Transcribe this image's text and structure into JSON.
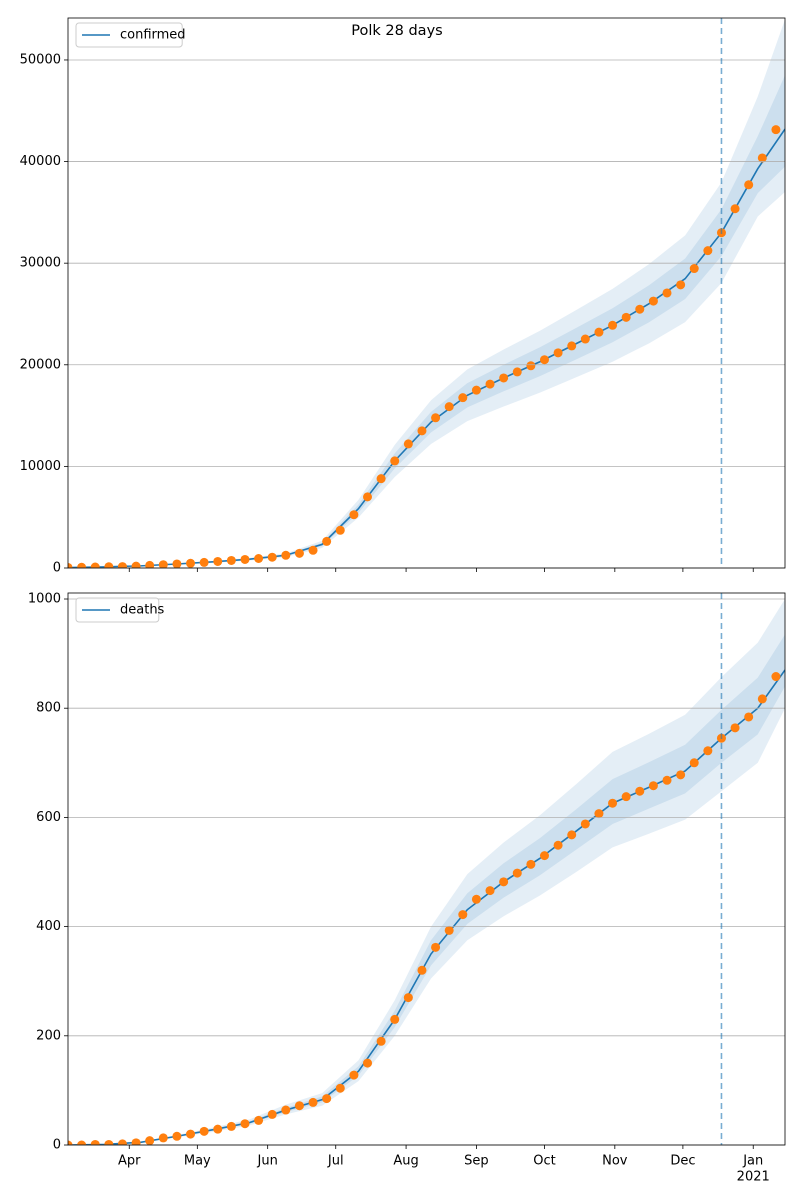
{
  "chart_data": [
    {
      "type": "line",
      "title": "Polk 28 days",
      "legend": "upper left",
      "grid": true,
      "xlim": [
        0,
        316
      ],
      "ylim": [
        0,
        54130
      ],
      "yticks": [
        0,
        10000,
        20000,
        30000,
        40000,
        50000
      ],
      "xticks": [
        {
          "value": 27,
          "label": "Apr"
        },
        {
          "value": 57,
          "label": "May"
        },
        {
          "value": 88,
          "label": "Jun"
        },
        {
          "value": 118,
          "label": "Jul"
        },
        {
          "value": 149,
          "label": "Aug"
        },
        {
          "value": 180,
          "label": "Sep"
        },
        {
          "value": 210,
          "label": "Oct"
        },
        {
          "value": 241,
          "label": "Nov"
        },
        {
          "value": 271,
          "label": "Dec"
        },
        {
          "value": 302,
          "label": "Jan"
        }
      ],
      "vline": 288,
      "vline_color": "#1f77b4",
      "band_color": "#1f77b4",
      "x": [
        0,
        16,
        32,
        48,
        64,
        80,
        96,
        112,
        128,
        144,
        160,
        176,
        192,
        208,
        224,
        240,
        256,
        272,
        288,
        304,
        316
      ],
      "series": [
        {
          "name": "confirmed",
          "color": "#1f77b4",
          "values": [
            50,
            110,
            208,
            395,
            613,
            871,
            1253,
            2327,
            5833,
            10542,
            14357,
            17000,
            18700,
            20300,
            22081,
            23887,
            26000,
            28471,
            33000,
            39300,
            43200
          ]
        }
      ],
      "bands": [
        {
          "upper": [
            58,
            127,
            239,
            454,
            705,
            1002,
            1441,
            2676,
            6708,
            12123,
            16511,
            19550,
            21505,
            23345,
            25393,
            27470,
            29900,
            32742,
            37950,
            46400,
            54000
          ],
          "lower": [
            43,
            94,
            177,
            336,
            521,
            740,
            1065,
            1978,
            4958,
            8961,
            12203,
            14450,
            15895,
            17255,
            18769,
            20304,
            22100,
            24200,
            28050,
            34600,
            37000
          ]
        },
        {
          "upper": [
            54,
            118,
            223,
            423,
            656,
            932,
            1341,
            2490,
            6241,
            11280,
            15362,
            18190,
            20009,
            21721,
            23627,
            25559,
            27820,
            30464,
            35310,
            42500,
            48500
          ],
          "lower": [
            47,
            102,
            193,
            367,
            570,
            810,
            1165,
            2164,
            5425,
            9804,
            13352,
            15810,
            17391,
            18879,
            20535,
            22215,
            24180,
            26478,
            30690,
            36900,
            39500
          ]
        }
      ],
      "observed": {
        "color": "#ff7f0e",
        "x": [
          0,
          6,
          12,
          18,
          24,
          30,
          36,
          42,
          48,
          54,
          60,
          66,
          72,
          78,
          84,
          90,
          96,
          102,
          108,
          114,
          120,
          126,
          132,
          138,
          144,
          150,
          156,
          162,
          168,
          174,
          180,
          186,
          192,
          198,
          204,
          210,
          216,
          222,
          228,
          234,
          240,
          246,
          252,
          258,
          264,
          270,
          276,
          282,
          288,
          294,
          300,
          306,
          312
        ],
        "values": [
          50,
          72,
          94,
          117,
          139,
          185,
          255,
          325,
          395,
          465,
          548,
          645,
          742,
          839,
          935,
          1063,
          1253,
          1442,
          1745,
          2618,
          3711,
          5244,
          7000,
          8792,
          10542,
          12214,
          13500,
          14786,
          15882,
          16765,
          17500,
          18100,
          18700,
          19300,
          19900,
          20500,
          21177,
          21855,
          22532,
          23210,
          23887,
          24667,
          25467,
          26267,
          27067,
          27867,
          29471,
          31235,
          33000,
          35357,
          37714,
          40357,
          43143
        ]
      }
    },
    {
      "type": "line",
      "legend": "upper left",
      "grid": true,
      "year_label": "2021",
      "xlim": [
        0,
        316
      ],
      "ylim": [
        0,
        1011
      ],
      "yticks": [
        0,
        200,
        400,
        600,
        800,
        1000
      ],
      "xticks": [
        {
          "value": 27,
          "label": "Apr"
        },
        {
          "value": 57,
          "label": "May"
        },
        {
          "value": 88,
          "label": "Jun"
        },
        {
          "value": 118,
          "label": "Jul"
        },
        {
          "value": 149,
          "label": "Aug"
        },
        {
          "value": 180,
          "label": "Sep"
        },
        {
          "value": 210,
          "label": "Oct"
        },
        {
          "value": 241,
          "label": "Nov"
        },
        {
          "value": 271,
          "label": "Dec"
        },
        {
          "value": 302,
          "label": "Jan"
        }
      ],
      "vline": 288,
      "vline_color": "#1f77b4",
      "band_color": "#1f77b4",
      "x": [
        0,
        16,
        32,
        48,
        64,
        80,
        96,
        112,
        128,
        144,
        160,
        176,
        192,
        208,
        224,
        240,
        256,
        272,
        288,
        304,
        316
      ],
      "series": [
        {
          "name": "deaths",
          "color": "#1f77b4",
          "values": [
            0,
            1,
            5,
            16,
            28,
            41,
            64,
            83,
            135,
            230,
            350,
            431,
            482,
            525,
            575,
            626,
            655,
            685,
            745,
            800,
            870
          ]
        }
      ],
      "bands": [
        {
          "upper": [
            0,
            1,
            6,
            18,
            32,
            47,
            74,
            95,
            155,
            265,
            400,
            496,
            554,
            604,
            661,
            720,
            753,
            788,
            857,
            920,
            1000
          ],
          "lower": [
            0,
            1,
            4,
            14,
            24,
            36,
            56,
            72,
            117,
            200,
            305,
            375,
            419,
            457,
            500,
            545,
            570,
            596,
            648,
            700,
            800
          ]
        },
        {
          "upper": [
            0,
            1,
            5,
            17,
            30,
            44,
            68,
            89,
            144,
            246,
            375,
            461,
            516,
            562,
            615,
            670,
            701,
            733,
            797,
            856,
            935
          ],
          "lower": [
            0,
            1,
            5,
            15,
            26,
            39,
            60,
            78,
            127,
            216,
            329,
            405,
            453,
            494,
            541,
            588,
            616,
            644,
            700,
            752,
            840
          ]
        }
      ],
      "observed": {
        "color": "#ff7f0e",
        "x": [
          0,
          6,
          12,
          18,
          24,
          30,
          36,
          42,
          48,
          54,
          60,
          66,
          72,
          78,
          84,
          90,
          96,
          102,
          108,
          114,
          120,
          126,
          132,
          138,
          144,
          150,
          156,
          162,
          168,
          174,
          180,
          186,
          192,
          198,
          204,
          210,
          216,
          222,
          228,
          234,
          240,
          246,
          252,
          258,
          264,
          270,
          276,
          282,
          288,
          294,
          300,
          306,
          312
        ],
        "values": [
          0,
          0,
          1,
          1,
          2,
          4,
          8,
          13,
          16,
          20,
          25,
          29,
          34,
          39,
          45,
          56,
          64,
          72,
          78,
          85,
          104,
          128,
          150,
          190,
          230,
          270,
          320,
          362,
          393,
          422,
          450,
          466,
          482,
          498,
          514,
          530,
          549,
          568,
          588,
          607,
          626,
          638,
          648,
          658,
          668,
          678,
          700,
          722,
          745,
          764,
          784,
          817,
          858
        ]
      }
    }
  ]
}
